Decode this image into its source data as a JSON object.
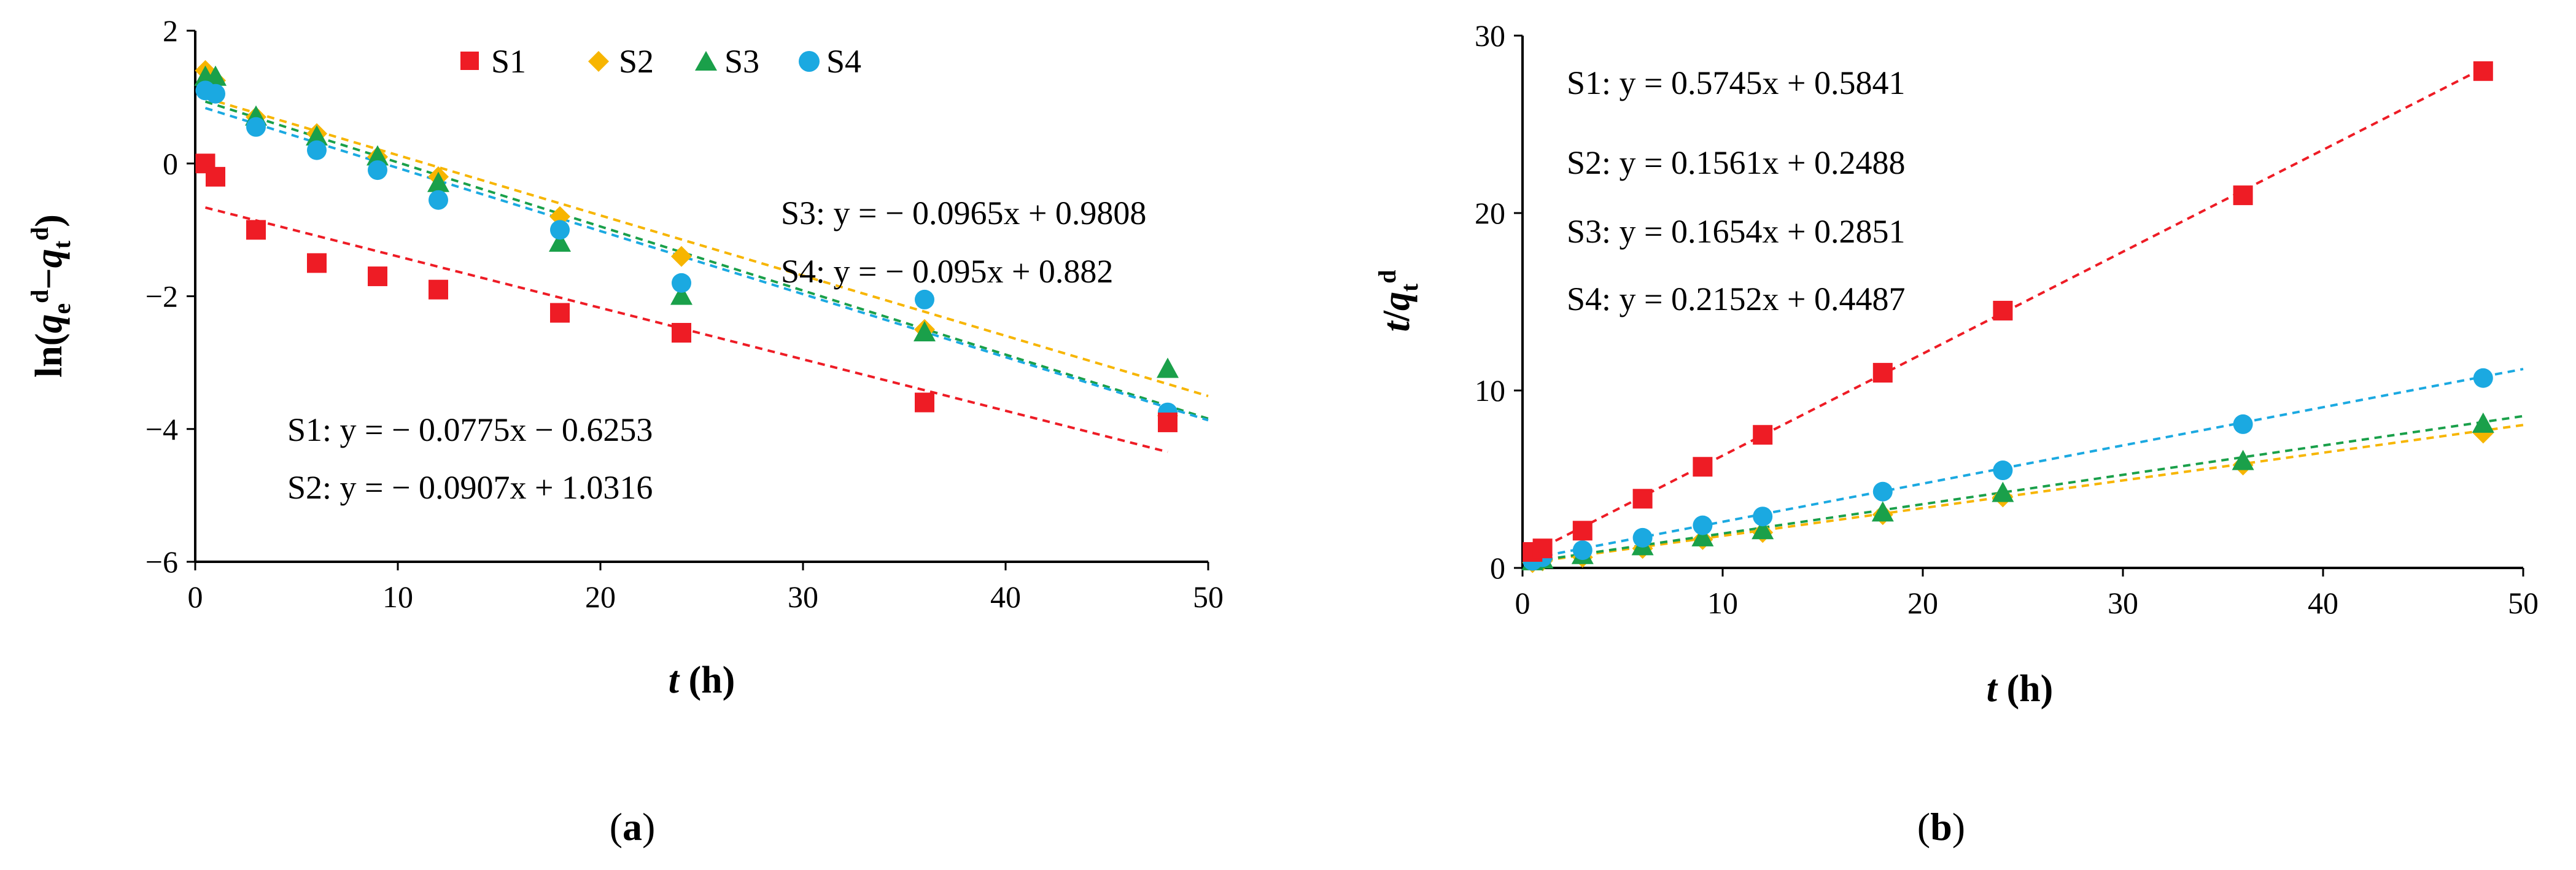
{
  "chart_data": [
    {
      "type": "scatter",
      "panel_label": "(a)",
      "xlabel": "t (h)",
      "ylabel": "ln(q_e^d−q_t^d)",
      "ylabel_parts": {
        "pre": "ln(",
        "q1": "q",
        "q1_sub": "e",
        "q1_sup": "d",
        "dash": "−",
        "q2": "q",
        "q2_sub": "t",
        "q2_sup": "d",
        "post": ")"
      },
      "xlim": [
        0,
        50
      ],
      "ylim": [
        -6,
        2
      ],
      "xticks": [
        "0",
        "10",
        "20",
        "30",
        "40",
        "50"
      ],
      "yticks": [
        "2",
        "0",
        "−2",
        "−4",
        "−6"
      ],
      "legend_position": "top",
      "series": [
        {
          "name": "S1",
          "color": "#ee1c25",
          "marker": "square",
          "x": [
            0.5,
            1,
            3,
            6,
            9,
            12,
            18,
            24,
            36,
            48
          ],
          "y": [
            0.0,
            -0.2,
            -1.0,
            -1.5,
            -1.7,
            -1.9,
            -2.25,
            -2.55,
            -3.6,
            -3.9
          ],
          "fit": {
            "slope": -0.0775,
            "intercept": -0.6253,
            "x_range": [
              0.5,
              48
            ]
          }
        },
        {
          "name": "S2",
          "color": "#f7b500",
          "marker": "diamond",
          "x": [
            0.5,
            1,
            3,
            6,
            9,
            12,
            18,
            24,
            36,
            48
          ],
          "y": [
            1.4,
            1.25,
            0.7,
            0.45,
            0.1,
            -0.2,
            -0.8,
            -1.4,
            -2.5,
            -3.8
          ],
          "fit": {
            "slope": -0.0907,
            "intercept": 1.0316,
            "x_range": [
              0.5,
              50
            ]
          }
        },
        {
          "name": "S3",
          "color": "#1aa04a",
          "marker": "triangle",
          "x": [
            0.5,
            1,
            3,
            6,
            9,
            12,
            18,
            24,
            36,
            48
          ],
          "y": [
            1.3,
            1.3,
            0.7,
            0.4,
            0.1,
            -0.3,
            -1.2,
            -2.0,
            -2.55,
            -3.1
          ],
          "fit": {
            "slope": -0.0965,
            "intercept": 0.9808,
            "x_range": [
              0.5,
              50
            ]
          }
        },
        {
          "name": "S4",
          "color": "#1ba9e1",
          "marker": "circle",
          "x": [
            0.5,
            1,
            3,
            6,
            9,
            12,
            18,
            24,
            36,
            48
          ],
          "y": [
            1.1,
            1.05,
            0.55,
            0.2,
            -0.1,
            -0.55,
            -1.0,
            -1.8,
            -2.05,
            -3.75
          ],
          "fit": {
            "slope": -0.095,
            "intercept": 0.882,
            "x_range": [
              0.5,
              50
            ]
          }
        }
      ],
      "annotations": [
        "S3: y = − 0.0965x + 0.9808",
        "S4: y = − 0.095x + 0.882",
        "S1: y = − 0.0775x − 0.6253",
        "S2: y = − 0.0907x + 1.0316"
      ]
    },
    {
      "type": "scatter",
      "panel_label": "(b)",
      "xlabel": "t (h)",
      "ylabel": "t/q_t^d",
      "ylabel_parts": {
        "t": "t",
        "slash": "/",
        "q": "q",
        "q_sub": "t",
        "q_sup": "d"
      },
      "xlim": [
        0,
        50
      ],
      "ylim": [
        0,
        30
      ],
      "xticks": [
        "0",
        "10",
        "20",
        "30",
        "40",
        "50"
      ],
      "yticks": [
        "30",
        "20",
        "10",
        "0"
      ],
      "series": [
        {
          "name": "S1",
          "color": "#ee1c25",
          "marker": "square",
          "x": [
            0.5,
            1,
            3,
            6,
            9,
            12,
            18,
            24,
            36,
            48
          ],
          "y": [
            0.9,
            1.1,
            2.1,
            3.9,
            5.7,
            7.5,
            11.0,
            14.5,
            21.0,
            28.0
          ],
          "fit": {
            "slope": 0.5745,
            "intercept": 0.5841,
            "x_range": [
              0.5,
              48
            ]
          }
        },
        {
          "name": "S2",
          "color": "#f7b500",
          "marker": "diamond",
          "x": [
            0.5,
            1,
            3,
            6,
            9,
            12,
            18,
            24,
            36,
            48
          ],
          "y": [
            0.3,
            0.4,
            0.6,
            1.1,
            1.6,
            2.0,
            3.0,
            4.0,
            5.8,
            7.6
          ],
          "fit": {
            "slope": 0.1561,
            "intercept": 0.2488,
            "x_range": [
              0.5,
              50
            ]
          }
        },
        {
          "name": "S3",
          "color": "#1aa04a",
          "marker": "triangle",
          "x": [
            0.5,
            1,
            3,
            6,
            9,
            12,
            18,
            24,
            36,
            48
          ],
          "y": [
            0.35,
            0.45,
            0.7,
            1.2,
            1.7,
            2.1,
            3.1,
            4.2,
            6.0,
            8.1
          ],
          "fit": {
            "slope": 0.1654,
            "intercept": 0.2851,
            "x_range": [
              0.5,
              50
            ]
          }
        },
        {
          "name": "S4",
          "color": "#1ba9e1",
          "marker": "circle",
          "x": [
            0.5,
            1,
            3,
            6,
            9,
            12,
            18,
            24,
            36,
            48
          ],
          "y": [
            0.4,
            0.6,
            1.0,
            1.7,
            2.4,
            2.9,
            4.3,
            5.5,
            8.1,
            10.7
          ],
          "fit": {
            "slope": 0.2152,
            "intercept": 0.4487,
            "x_range": [
              0.5,
              50
            ]
          }
        }
      ],
      "annotations": [
        "S1: y = 0.5745x + 0.5841",
        "S2: y = 0.1561x + 0.2488",
        "S3: y = 0.1654x + 0.2851",
        "S4: y = 0.2152x + 0.4487"
      ]
    }
  ]
}
